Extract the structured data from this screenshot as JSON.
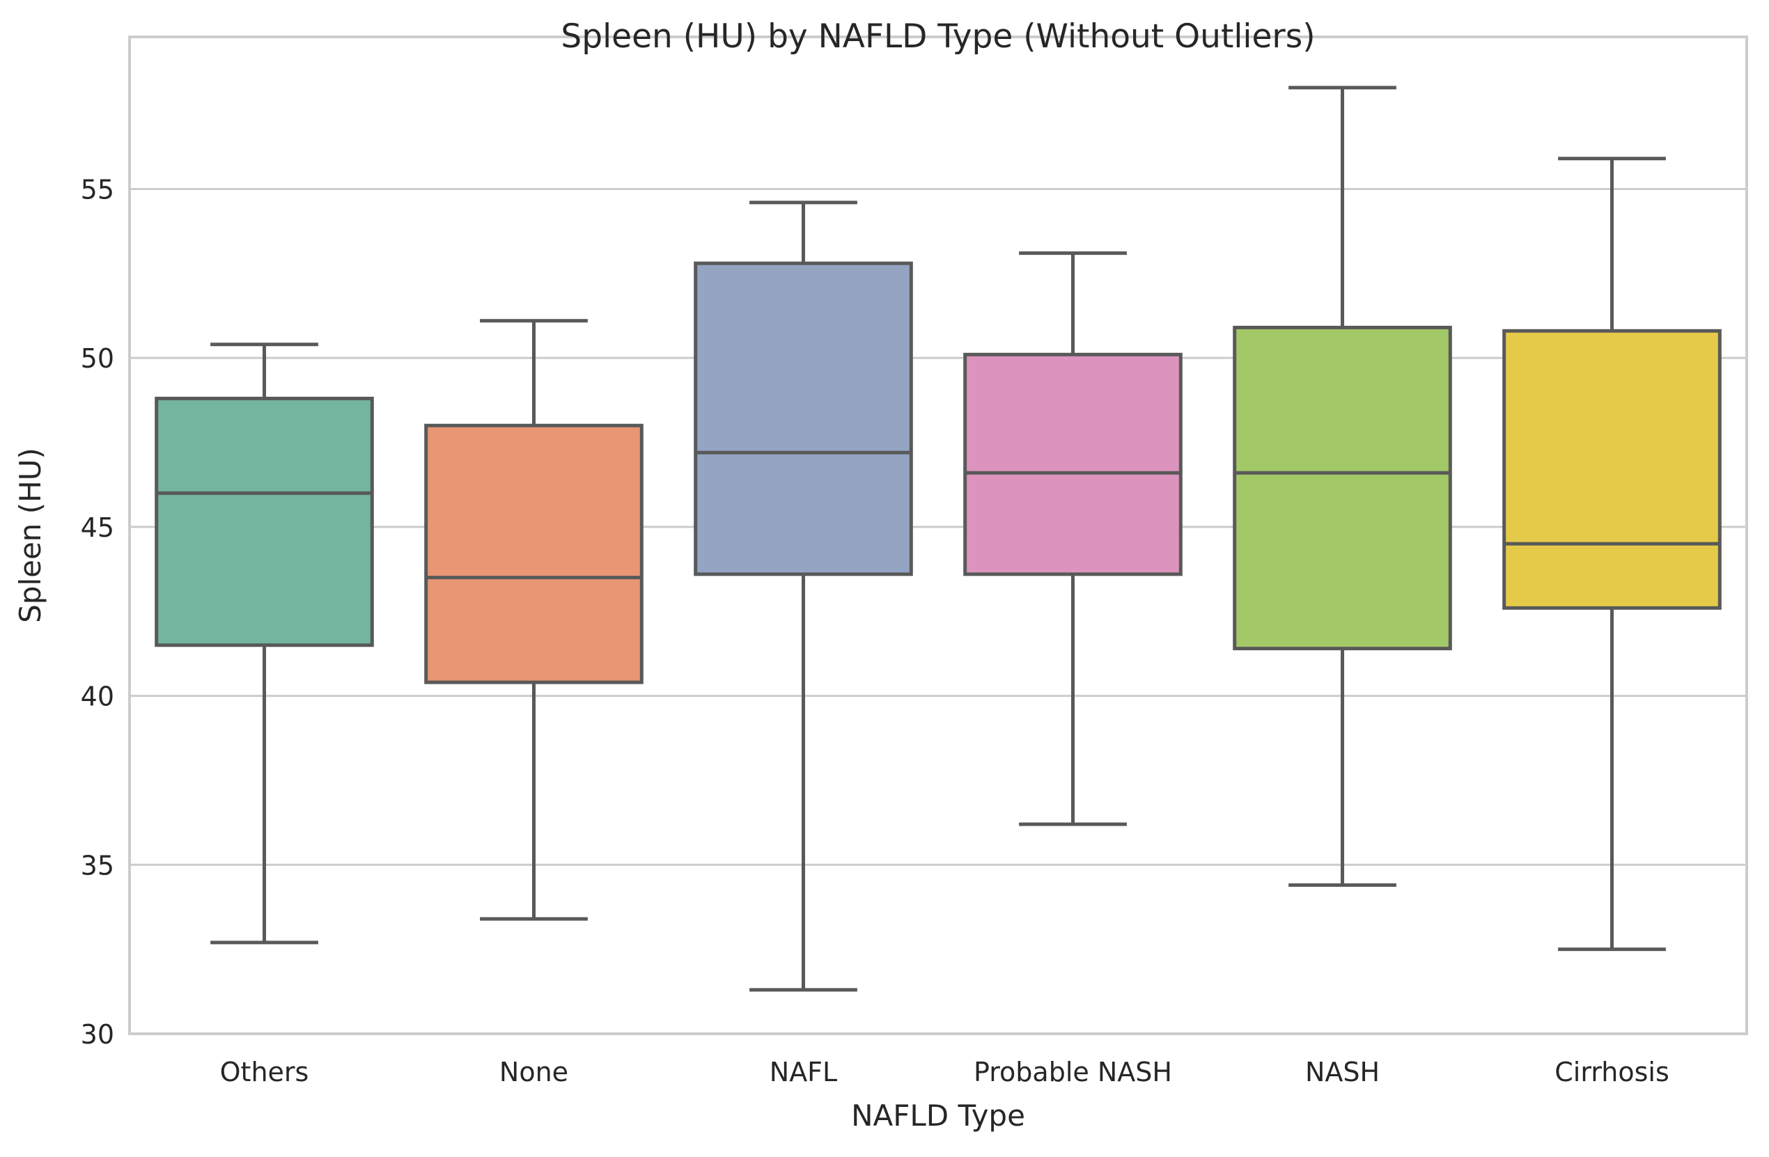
{
  "chart_data": {
    "type": "box",
    "title": "Spleen (HU) by NAFLD Type (Without Outliers)",
    "xlabel": "NAFLD Type",
    "ylabel": "Spleen (HU)",
    "ylim": [
      30,
      59.5
    ],
    "yticks": [
      30,
      35,
      40,
      45,
      50,
      55
    ],
    "grid": "horizontal",
    "legend": "none",
    "categories": [
      "Others",
      "None",
      "NAFL",
      "Probable NASH",
      "NASH",
      "Cirrhosis"
    ],
    "boxes": [
      {
        "category": "Others",
        "whisker_low": 32.7,
        "q1": 41.5,
        "median": 46.0,
        "q3": 48.8,
        "whisker_high": 50.4,
        "color": "#73b59f"
      },
      {
        "category": "None",
        "whisker_low": 33.4,
        "q1": 40.4,
        "median": 43.5,
        "q3": 48.0,
        "whisker_high": 51.1,
        "color": "#e89673"
      },
      {
        "category": "NAFL",
        "whisker_low": 31.3,
        "q1": 43.6,
        "median": 47.2,
        "q3": 52.8,
        "whisker_high": 54.6,
        "color": "#94a4c3"
      },
      {
        "category": "Probable NASH",
        "whisker_low": 36.2,
        "q1": 43.6,
        "median": 46.6,
        "q3": 50.1,
        "whisker_high": 53.1,
        "color": "#dc94be"
      },
      {
        "category": "NASH",
        "whisker_low": 34.4,
        "q1": 41.4,
        "median": 46.6,
        "q3": 50.9,
        "whisker_high": 58.0,
        "color": "#a2c867"
      },
      {
        "category": "Cirrhosis",
        "whisker_low": 32.5,
        "q1": 42.6,
        "median": 44.5,
        "q3": 50.8,
        "whisker_high": 55.9,
        "color": "#e5ca4a"
      }
    ]
  }
}
